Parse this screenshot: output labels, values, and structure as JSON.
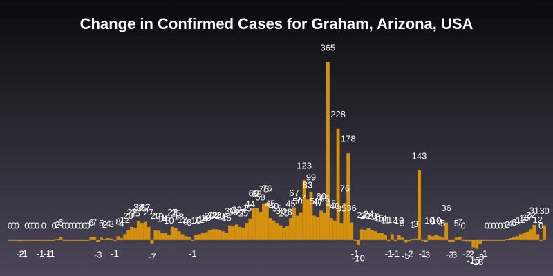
{
  "chart_data": {
    "type": "bar",
    "title": "Change in Confirmed Cases for Graham, Arizona, USA",
    "color": "#d4900f",
    "ylim": [
      -20,
      380
    ],
    "values": [
      0,
      0,
      0,
      -2,
      -1,
      0,
      0,
      0,
      0,
      -1,
      0,
      -1,
      -1,
      0,
      2,
      6,
      0,
      0,
      0,
      0,
      0,
      0,
      0,
      0,
      6,
      7,
      -3,
      5,
      2,
      4,
      3,
      -1,
      8,
      4,
      12,
      20,
      27,
      25,
      38,
      35,
      37,
      27,
      -7,
      20,
      19,
      14,
      15,
      10,
      27,
      25,
      18,
      12,
      8,
      6,
      -1,
      10,
      12,
      14,
      16,
      20,
      22,
      22,
      20,
      18,
      15,
      30,
      28,
      32,
      27,
      25,
      35,
      44,
      66,
      65,
      58,
      75,
      76,
      45,
      40,
      35,
      30,
      25,
      28,
      45,
      67,
      50,
      57,
      123,
      83,
      99,
      50,
      47,
      60,
      55,
      365,
      45,
      40,
      228,
      35,
      76,
      178,
      36,
      -1,
      -10,
      22,
      20,
      24,
      20,
      18,
      15,
      14,
      11,
      -1,
      12,
      -1,
      10,
      5,
      -5,
      -2,
      1,
      3,
      143,
      -1,
      -3,
      10,
      8,
      10,
      8,
      5,
      36,
      -3,
      -3,
      5,
      7,
      0,
      -2,
      -2,
      -15,
      -18,
      -8,
      -1,
      0,
      0,
      0,
      0,
      0,
      0,
      2,
      4,
      6,
      8,
      12,
      15,
      17,
      22,
      31,
      12,
      0,
      30
    ]
  }
}
